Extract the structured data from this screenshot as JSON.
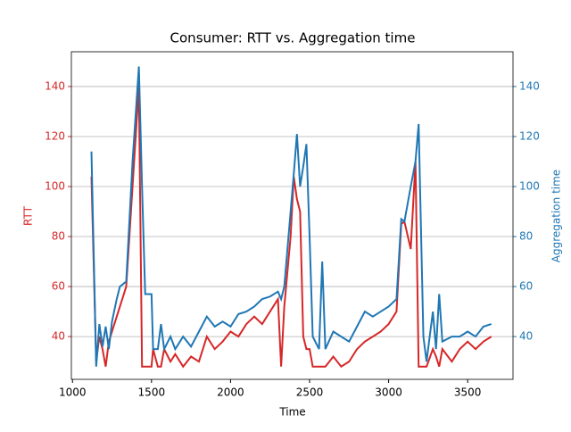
{
  "chart_data": {
    "type": "line",
    "title": "Consumer: RTT vs. Aggregation time",
    "x_label": "Time",
    "y_label": "RTT",
    "y2_label": "Aggregation time",
    "x": [
      1120,
      1150,
      1170,
      1190,
      1210,
      1230,
      1250,
      1280,
      1300,
      1340,
      1380,
      1420,
      1440,
      1460,
      1500,
      1510,
      1540,
      1560,
      1580,
      1620,
      1650,
      1700,
      1750,
      1800,
      1850,
      1900,
      1950,
      2000,
      2050,
      2100,
      2150,
      2200,
      2250,
      2300,
      2320,
      2340,
      2380,
      2400,
      2420,
      2440,
      2460,
      2480,
      2500,
      2520,
      2560,
      2580,
      2600,
      2650,
      2700,
      2750,
      2800,
      2850,
      2900,
      2950,
      3000,
      3050,
      3080,
      3100,
      3140,
      3170,
      3190,
      3220,
      3240,
      3280,
      3300,
      3320,
      3340,
      3400,
      3450,
      3500,
      3550,
      3600,
      3650
    ],
    "series": [
      {
        "name": "RTT",
        "color": "#d62728",
        "axis": "y",
        "values": [
          104,
          30,
          40,
          35,
          28,
          38,
          42,
          48,
          52,
          60,
          100,
          140,
          28,
          28,
          28,
          35,
          28,
          28,
          35,
          30,
          33,
          28,
          32,
          30,
          40,
          35,
          38,
          42,
          40,
          45,
          48,
          45,
          50,
          55,
          28,
          52,
          80,
          104,
          95,
          90,
          40,
          35,
          35,
          28,
          28,
          28,
          28,
          32,
          28,
          30,
          35,
          38,
          40,
          42,
          45,
          50,
          85,
          86,
          75,
          110,
          28,
          28,
          28,
          35,
          32,
          28,
          35,
          30,
          35,
          38,
          35,
          38,
          40
        ]
      },
      {
        "name": "Aggregation time",
        "color": "#1f77b4",
        "axis": "y2",
        "values": [
          114,
          28,
          45,
          36,
          44,
          35,
          46,
          55,
          60,
          62,
          110,
          148,
          100,
          57,
          57,
          35,
          35,
          45,
          35,
          40,
          35,
          40,
          36,
          42,
          48,
          44,
          46,
          44,
          49,
          50,
          52,
          55,
          56,
          58,
          55,
          60,
          90,
          105,
          121,
          100,
          108,
          117,
          80,
          40,
          35,
          70,
          35,
          42,
          40,
          38,
          44,
          50,
          48,
          50,
          52,
          55,
          87,
          86,
          100,
          110,
          125,
          40,
          30,
          50,
          35,
          57,
          38,
          40,
          40,
          42,
          40,
          44,
          45
        ]
      }
    ],
    "xlim": [
      993,
      3787
    ],
    "xticks": [
      1000,
      1500,
      2000,
      2500,
      3000,
      3500
    ],
    "ylim": [
      22.9,
      153.9
    ],
    "yticks": [
      40,
      60,
      80,
      100,
      120,
      140
    ],
    "y2lim": [
      22.9,
      153.9
    ],
    "y2ticks": [
      40,
      60,
      80,
      100,
      120,
      140
    ],
    "grid": true
  }
}
